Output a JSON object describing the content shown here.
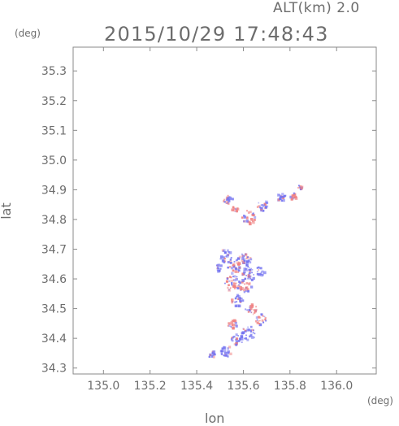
{
  "header": {
    "altitude_label": "ALT(km) 2.0",
    "timestamp": "2015/10/29 17:48:43"
  },
  "axes": {
    "y_unit": "(deg)",
    "x_unit": "(deg)",
    "y_label": "lat",
    "x_label": "lon"
  },
  "chart_data": {
    "type": "heatmap",
    "xlabel": "lon",
    "ylabel": "lat",
    "xlim": [
      134.87,
      136.17
    ],
    "ylim": [
      34.28,
      35.38
    ],
    "x_ticks": [
      "135.0",
      "135.2",
      "135.4",
      "135.6",
      "135.8",
      "136.0"
    ],
    "y_ticks": [
      "34.3",
      "34.4",
      "34.5",
      "34.6",
      "34.7",
      "34.8",
      "34.9",
      "35.0",
      "35.1",
      "35.2",
      "35.3"
    ],
    "grid": true,
    "colors": {
      "positive": "#f08080",
      "negative": "#7070f0"
    },
    "clusters": [
      {
        "lon": 135.53,
        "lat": 34.87,
        "sign": "neg",
        "r": 0.02
      },
      {
        "lon": 135.56,
        "lat": 34.84,
        "sign": "pos",
        "r": 0.015
      },
      {
        "lon": 135.62,
        "lat": 34.81,
        "sign": "pos",
        "r": 0.03
      },
      {
        "lon": 135.68,
        "lat": 34.85,
        "sign": "neg",
        "r": 0.025
      },
      {
        "lon": 135.76,
        "lat": 34.88,
        "sign": "neg",
        "r": 0.02
      },
      {
        "lon": 135.81,
        "lat": 34.88,
        "sign": "pos",
        "r": 0.015
      },
      {
        "lon": 135.84,
        "lat": 34.91,
        "sign": "pos",
        "r": 0.01
      },
      {
        "lon": 135.52,
        "lat": 34.68,
        "sign": "neg",
        "r": 0.03
      },
      {
        "lon": 135.56,
        "lat": 34.64,
        "sign": "pos",
        "r": 0.03
      },
      {
        "lon": 135.6,
        "lat": 34.66,
        "sign": "neg",
        "r": 0.035
      },
      {
        "lon": 135.55,
        "lat": 34.59,
        "sign": "pos",
        "r": 0.035
      },
      {
        "lon": 135.6,
        "lat": 34.58,
        "sign": "pos",
        "r": 0.03
      },
      {
        "lon": 135.62,
        "lat": 34.62,
        "sign": "neg",
        "r": 0.03
      },
      {
        "lon": 135.57,
        "lat": 34.53,
        "sign": "neg",
        "r": 0.025
      },
      {
        "lon": 135.63,
        "lat": 34.5,
        "sign": "pos",
        "r": 0.025
      },
      {
        "lon": 135.67,
        "lat": 34.47,
        "sign": "pos",
        "r": 0.025
      },
      {
        "lon": 135.55,
        "lat": 34.45,
        "sign": "pos",
        "r": 0.02
      },
      {
        "lon": 135.62,
        "lat": 34.42,
        "sign": "neg",
        "r": 0.03
      },
      {
        "lon": 135.57,
        "lat": 34.4,
        "sign": "neg",
        "r": 0.025
      },
      {
        "lon": 135.52,
        "lat": 34.36,
        "sign": "neg",
        "r": 0.025
      },
      {
        "lon": 135.46,
        "lat": 34.35,
        "sign": "neg",
        "r": 0.015
      },
      {
        "lon": 135.49,
        "lat": 34.64,
        "sign": "neg",
        "r": 0.015
      },
      {
        "lon": 135.67,
        "lat": 34.63,
        "sign": "neg",
        "r": 0.02
      }
    ]
  }
}
